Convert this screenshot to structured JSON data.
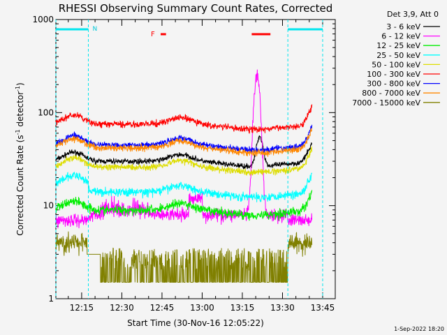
{
  "chart_data": {
    "type": "line",
    "title": "RHESSI Observing Summary Count Rates, Corrected",
    "xlabel": "Start Time (30-Nov-16 12:05:22)",
    "ylabel_main": "Corrected Count Rate (s",
    "ylabel_sup1": "-1",
    "ylabel_mid": " detector",
    "ylabel_sup2": "-1",
    "ylabel_end": ")",
    "x_range_min": [
      5.37,
      101.0
    ],
    "y_scale": "log",
    "ylim": [
      1,
      1000
    ],
    "x_ticks": [
      {
        "min": 15,
        "label": "12:15"
      },
      {
        "min": 30,
        "label": "12:30"
      },
      {
        "min": 45,
        "label": "12:45"
      },
      {
        "min": 60,
        "label": "13:00"
      },
      {
        "min": 75,
        "label": "13:15"
      },
      {
        "min": 90,
        "label": "13:30"
      },
      {
        "min": 105,
        "label": "13:45"
      }
    ],
    "y_ticks": [
      {
        "v": 1,
        "label": "1"
      },
      {
        "v": 10,
        "label": "10"
      },
      {
        "v": 100,
        "label": "100"
      },
      {
        "v": 1000,
        "label": "1000"
      }
    ],
    "legend_title": "Det 3,9, Att 0",
    "legend_position": "outside-right",
    "night_marker": "N",
    "flare_marker": "F",
    "timestamp": "1-Sep-2022 18:20",
    "night_intervals": [
      [
        5.37,
        17.5
      ],
      [
        92.0,
        105.0
      ]
    ],
    "flare_intervals": [
      [
        44.5,
        46.5
      ],
      [
        78.5,
        85.5
      ]
    ],
    "series": [
      {
        "name": "3 - 6 keV",
        "color": "#000000",
        "base": 30
      },
      {
        "name": "6 - 12 keV",
        "color": "#ff00ff",
        "base": 7
      },
      {
        "name": "12 - 25 keV",
        "color": "#00ee00",
        "base": 9
      },
      {
        "name": "25 - 50 keV",
        "color": "#00ffff",
        "base": 14
      },
      {
        "name": "50 - 100 keV",
        "color": "#dddd00",
        "base": 26
      },
      {
        "name": "100 - 300 keV",
        "color": "#ff0000",
        "base": 75
      },
      {
        "name": "300 - 800 keV",
        "color": "#0000ff",
        "base": 45
      },
      {
        "name": "800 - 7000 keV",
        "color": "#ff8800",
        "base": 42
      },
      {
        "name": "7000 - 15000 keV",
        "color": "#808000",
        "base": 2
      }
    ],
    "flare_peak": {
      "series": "6 - 12 keV",
      "time_min": 80.5,
      "peak": 230
    }
  }
}
